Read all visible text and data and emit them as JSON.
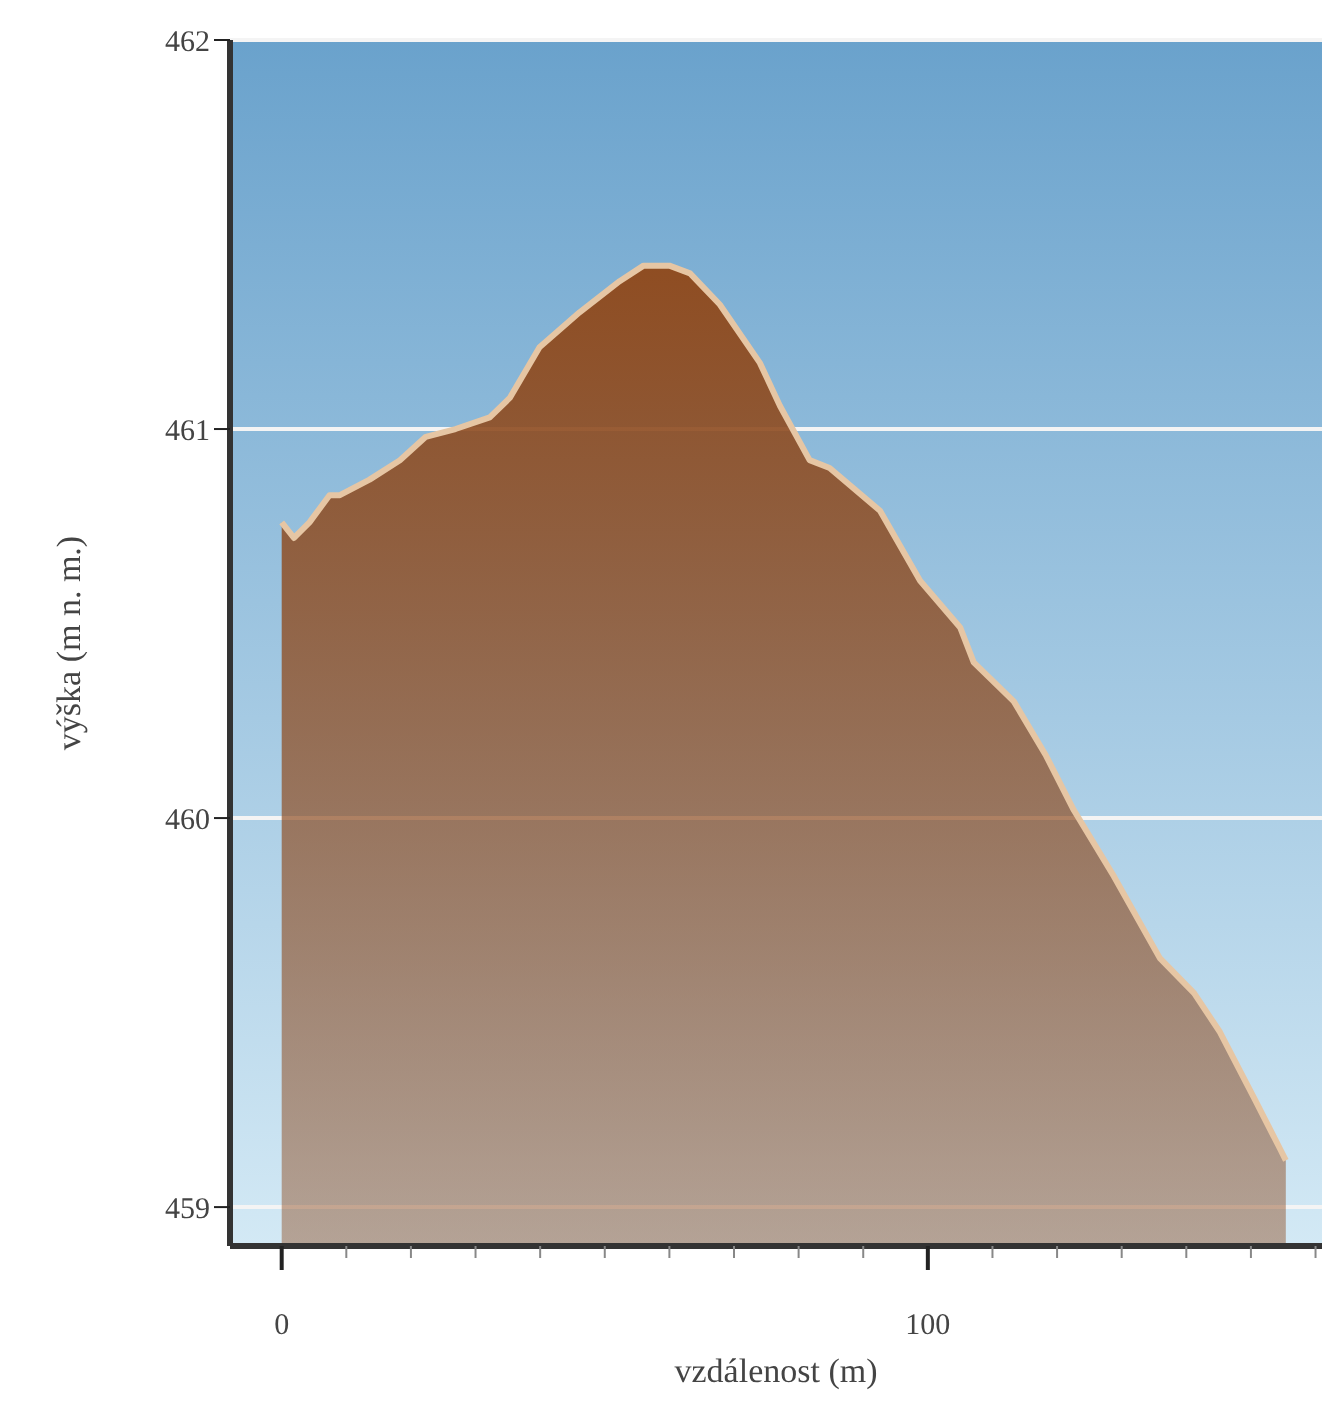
{
  "chart_data": {
    "type": "area",
    "xlabel": "vzdálenost (m)",
    "ylabel": "výška (m n. m.)",
    "x": [
      0,
      1.9,
      4.3,
      7.4,
      9,
      13.6,
      18.3,
      22.3,
      26.9,
      32.2,
      35.3,
      39.9,
      46.1,
      52.3,
      56,
      60,
      63.2,
      67.8,
      74,
      77.1,
      81.7,
      84.8,
      92.6,
      98.8,
      105,
      107.1,
      113.3,
      118.3,
      122.6,
      128.8,
      135.9,
      141.2,
      145.2,
      150.5,
      154.5,
      155.4
    ],
    "series": [
      {
        "color": "#8f4d22",
        "values": [
          460.76,
          460.72,
          460.76,
          460.83,
          460.83,
          460.87,
          460.92,
          460.98,
          461.0,
          461.03,
          461.08,
          461.21,
          461.3,
          461.38,
          461.42,
          461.42,
          461.4,
          461.32,
          461.17,
          461.06,
          460.92,
          460.9,
          460.79,
          460.61,
          460.49,
          460.4,
          460.3,
          460.16,
          460.02,
          459.85,
          459.64,
          459.55,
          459.45,
          459.28,
          459.15,
          459.12
        ]
      }
    ],
    "xlim": [
      -8,
      161
    ],
    "xticks": [
      0,
      {
        "value": 10,
        "label": null
      },
      {
        "value": 20,
        "label": null
      },
      {
        "value": 30,
        "label": null
      },
      {
        "value": 40,
        "label": null
      },
      {
        "value": 50,
        "label": null
      },
      {
        "value": 60,
        "label": null
      },
      {
        "value": 70,
        "label": null
      },
      {
        "value": 80,
        "label": null
      },
      {
        "value": 90,
        "label": null
      },
      100,
      {
        "value": 110,
        "label": null
      },
      {
        "value": 120,
        "label": null
      },
      {
        "value": 130,
        "label": null
      },
      {
        "value": 140,
        "label": null
      },
      {
        "value": 150,
        "label": null
      },
      {
        "value": 160,
        "label": null
      }
    ],
    "ylim": [
      458.9,
      462
    ],
    "yticks": [
      459,
      460,
      461,
      462
    ],
    "grid": "y",
    "legend": false
  }
}
